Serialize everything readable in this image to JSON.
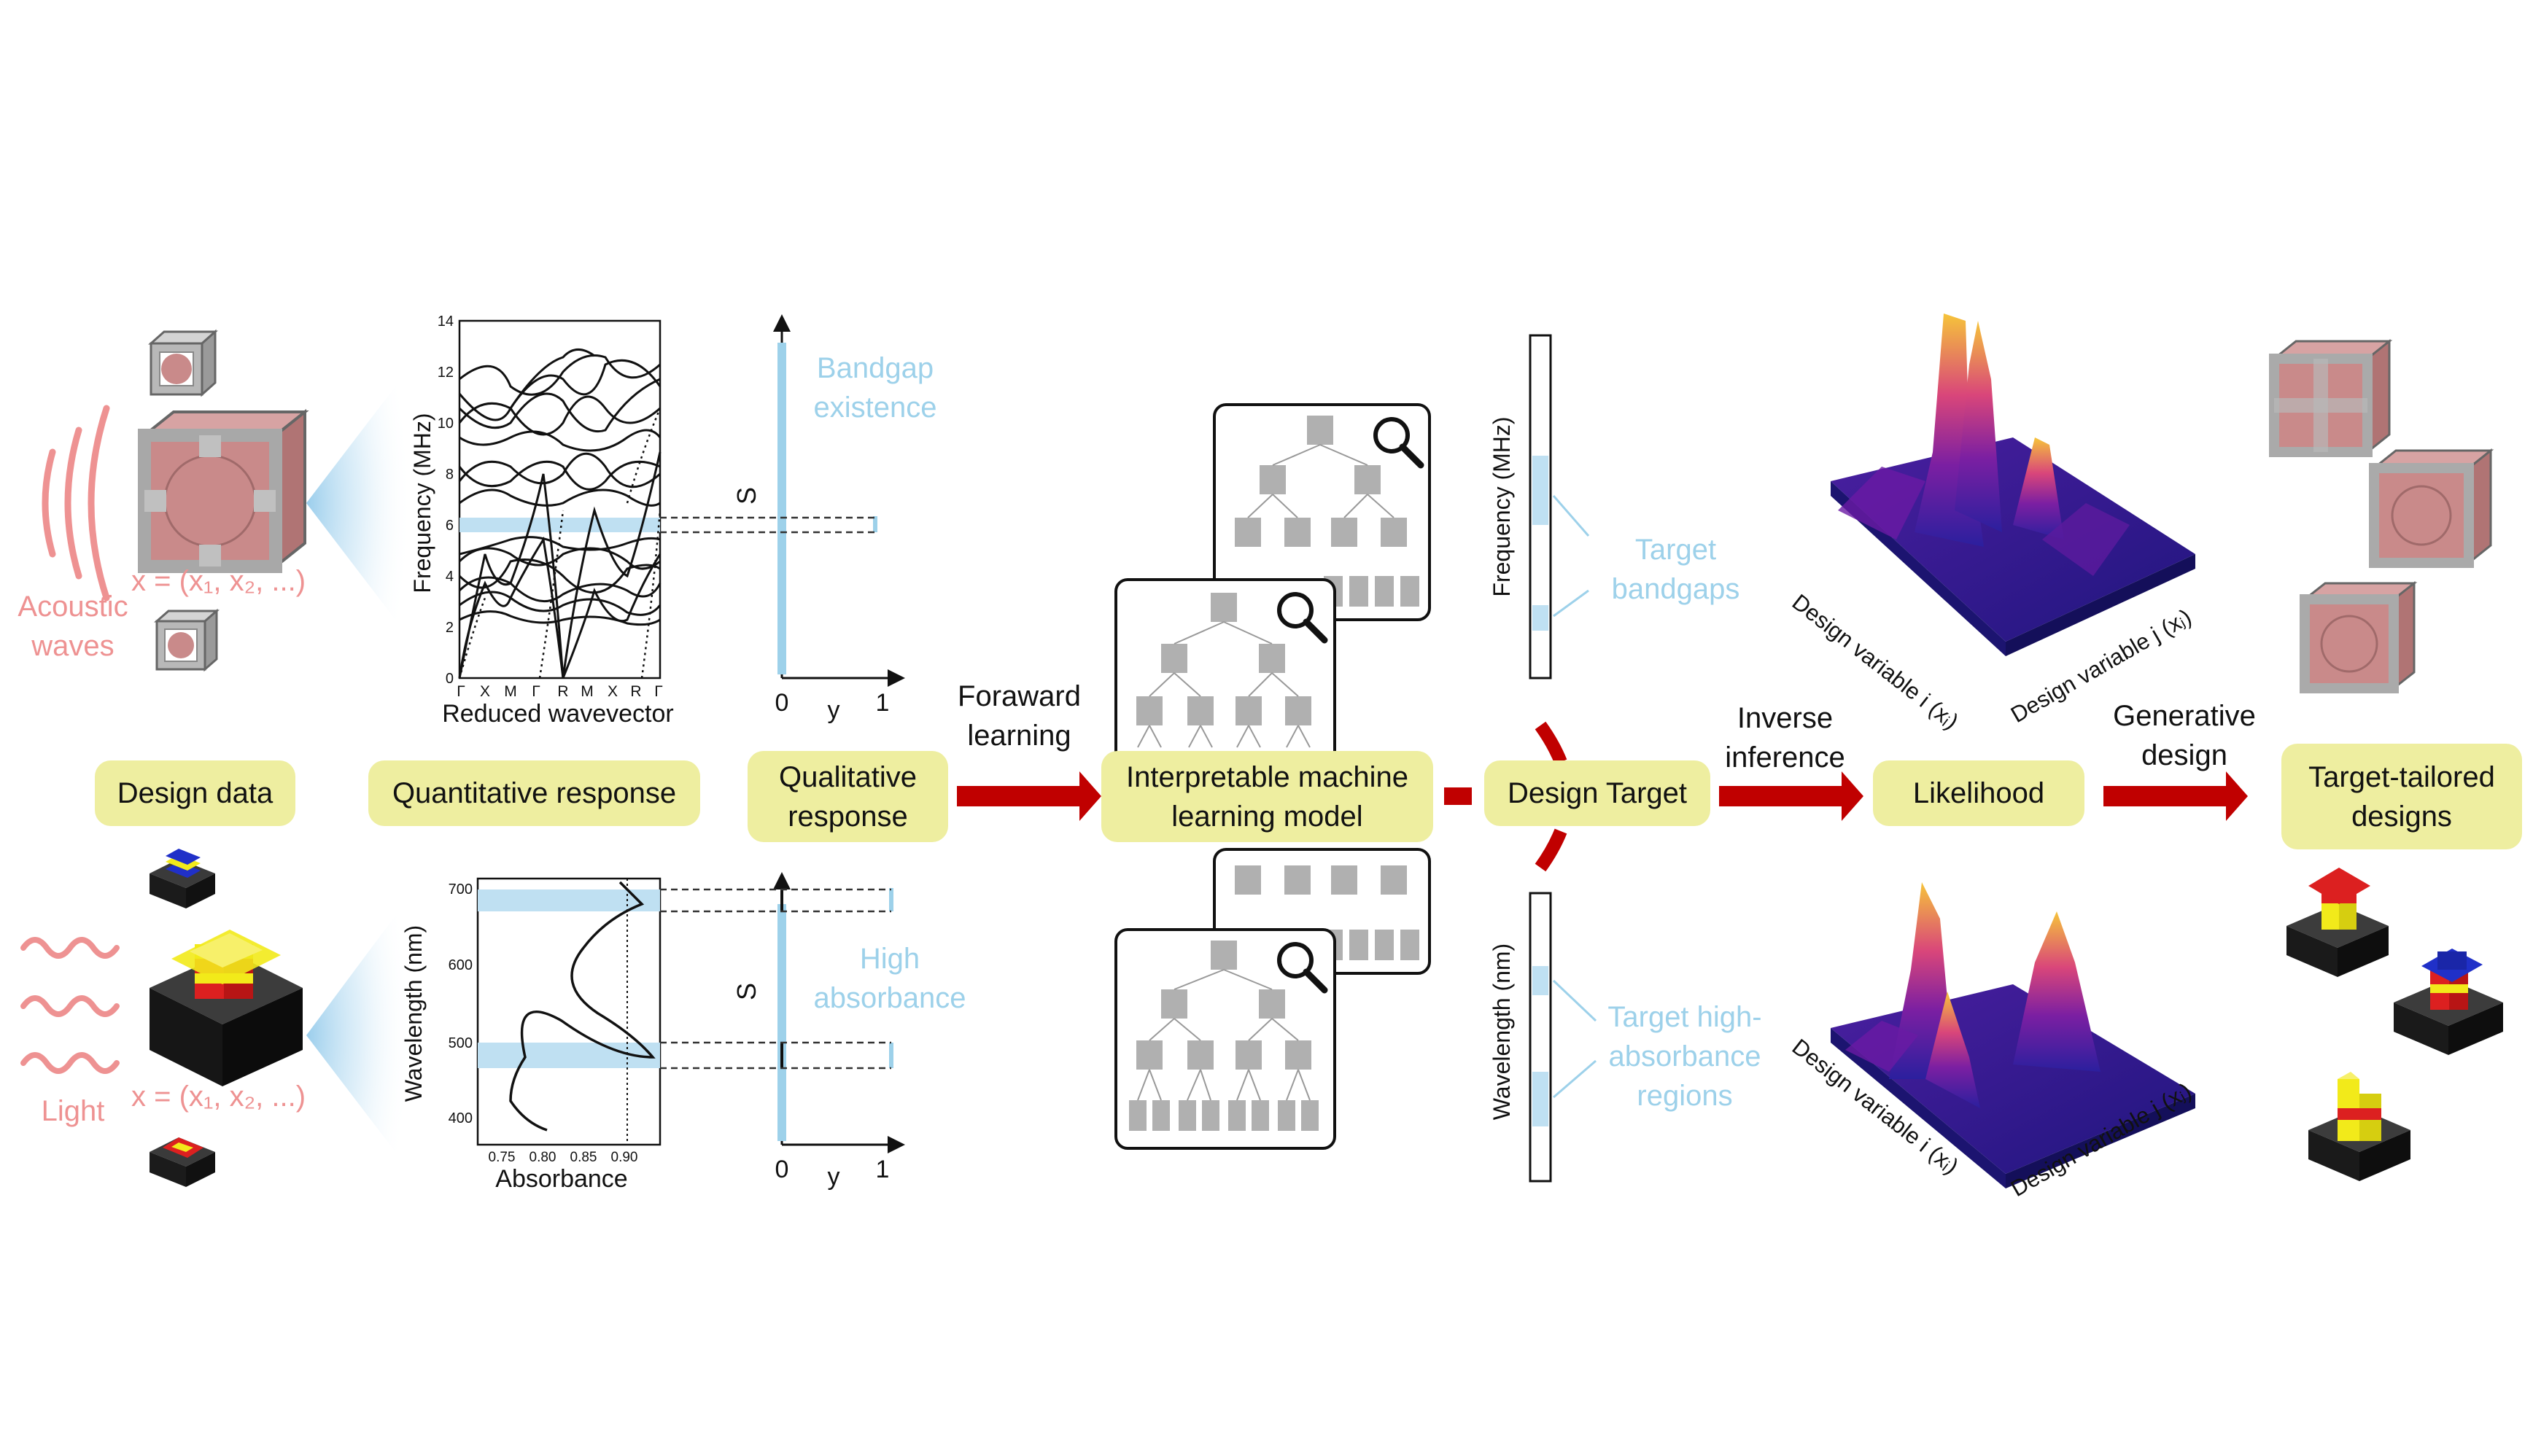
{
  "colors": {
    "label_bg": "#eeeea0",
    "arrow": "#c00000",
    "pink": "#ee9292",
    "light_blue": "#9dd1ea",
    "cube_frame": "#b8b8b8",
    "cube_sphere": "#c98a8a",
    "absorber_yellow": "#f2ea1a",
    "absorber_red": "#dc2020",
    "absorber_blue": "#2030c8",
    "absorber_base": "#2a2a2a"
  },
  "stages": {
    "design_data": "Design data",
    "quantitative_response": "Quantitative response",
    "qualitative_response": "Qualitative\nresponse",
    "ml_model": "Interpretable machine\nlearning model",
    "design_target": "Design Target",
    "likelihood": "Likelihood",
    "target_tailored": "Target-tailored\ndesigns"
  },
  "arrows": {
    "forward_learning": "Foraward\nlearning",
    "inverse_inference": "Inverse\ninference",
    "generative_design": "Generative\ndesign"
  },
  "inputs": {
    "acoustic": "Acoustic\nwaves",
    "light": "Light",
    "design_vector_acoustic": "x = (x₁, x₂, ...)",
    "design_vector_light": "x = (x₁, x₂, ...)"
  },
  "band_plot": {
    "ylabel": "Frequency (MHz)",
    "xlabel": "Reduced wavevector",
    "yticks": [
      "0",
      "2",
      "4",
      "6",
      "8",
      "10",
      "12",
      "14"
    ],
    "xticks": [
      "Γ",
      "X",
      "M",
      "Γ",
      "R",
      "M",
      "X",
      "R",
      "Γ"
    ],
    "bandgap_range": [
      5.9,
      6.4
    ]
  },
  "absorb_plot": {
    "ylabel": "Wavelength (nm)",
    "xlabel": "Absorbance",
    "yticks": [
      "400",
      "500",
      "600",
      "700"
    ],
    "xticks": [
      "0.75",
      "0.80",
      "0.85",
      "0.90"
    ],
    "threshold": 0.9,
    "high_bands_nm": [
      [
        663,
        687
      ],
      [
        468,
        494
      ]
    ]
  },
  "qual_top": {
    "ylabel": "S",
    "x0": "0",
    "xlabel": "y",
    "x1": "1",
    "annotation": "Bandgap\nexistence"
  },
  "qual_bottom": {
    "ylabel": "S",
    "x0": "0",
    "xlabel": "y",
    "x1": "1",
    "annotation": "High\nabsorbance"
  },
  "target_top": {
    "ylabel": "Frequency (MHz)",
    "annotation": "Target\nbandgaps"
  },
  "target_bottom": {
    "ylabel": "Wavelength (nm)",
    "annotation": "Target high-\nabsorbance\nregions"
  },
  "likelihood_plots": {
    "axis_i": "Design variable i (xᵢ)",
    "axis_j": "Design variable j (xⱼ)"
  }
}
